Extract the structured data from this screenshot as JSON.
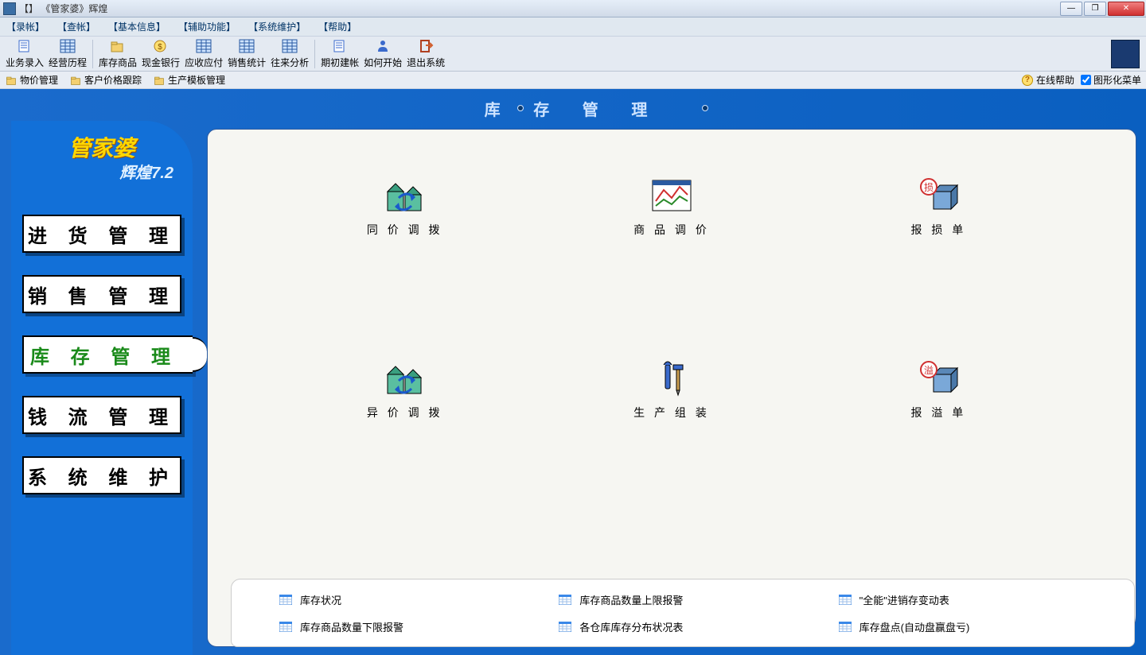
{
  "window": {
    "title": "【】 《管家婆》辉煌"
  },
  "menus": [
    "【录帐】",
    "【查帐】",
    "【基本信息】",
    "【辅助功能】",
    "【系统维护】",
    "【帮助】"
  ],
  "toolbar_groups": [
    [
      "业务录入",
      "经营历程"
    ],
    [
      "库存商品",
      "现金银行",
      "应收应付",
      "销售统计",
      "往来分析"
    ],
    [
      "期初建帐",
      "如何开始",
      "退出系统"
    ]
  ],
  "quicklinks": [
    "物价管理",
    "客户价格跟踪",
    "生产模板管理"
  ],
  "online_help": "在线帮助",
  "graphic_menu": "图形化菜单",
  "brand": {
    "name": "管家婆",
    "sub": "辉煌7.2"
  },
  "header_title": "库 存 管 理",
  "sidebar": [
    {
      "label": "进 货 管 理",
      "active": false
    },
    {
      "label": "销 售 管 理",
      "active": false
    },
    {
      "label": "库 存 管 理",
      "active": true
    },
    {
      "label": "钱 流 管 理",
      "active": false
    },
    {
      "label": "系 统 维 护",
      "active": false
    }
  ],
  "grid": [
    {
      "label": "同 价 调 拨",
      "icon": "warehouse-transfer"
    },
    {
      "label": "商 品 调 价",
      "icon": "price-chart"
    },
    {
      "label": "报 损 单",
      "icon": "damage"
    },
    {
      "label": "异 价 调 拨",
      "icon": "warehouse-transfer"
    },
    {
      "label": "生 产 组 装",
      "icon": "tools"
    },
    {
      "label": "报 溢 单",
      "icon": "overflow"
    }
  ],
  "reports": [
    "库存状况",
    "库存商品数量上限报警",
    "\"全能\"进销存变动表",
    "库存商品数量下限报警",
    "各仓库库存分布状况表",
    "库存盘点(自动盘赢盘亏)"
  ],
  "colors": {
    "blue_main": "#1270d8",
    "blue_dark": "#0a5fc0",
    "panel": "#f6f6f2",
    "active_green": "#1a8a1a",
    "brand_yellow": "#ffd800"
  }
}
